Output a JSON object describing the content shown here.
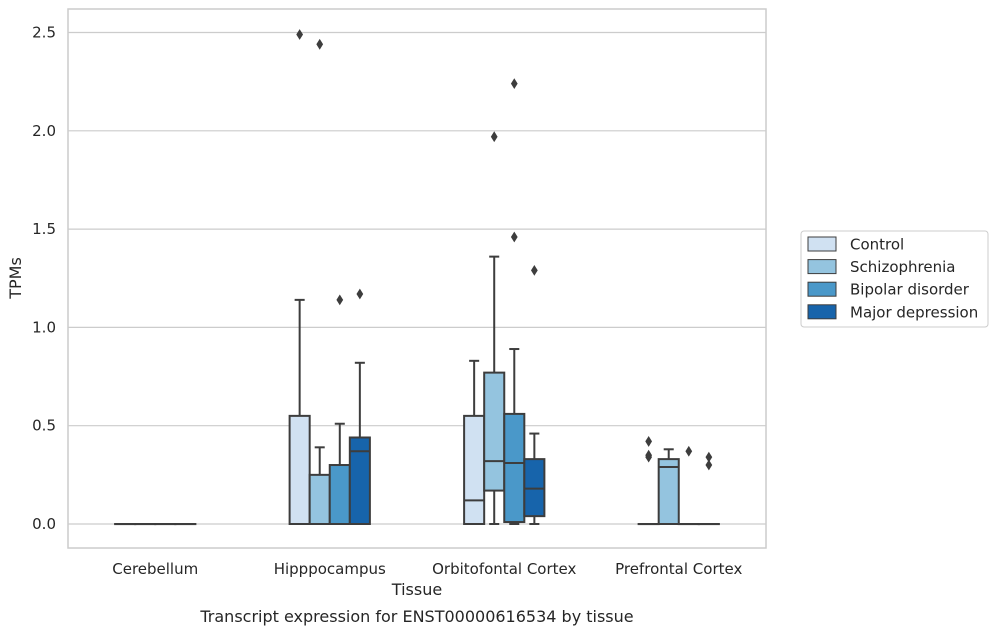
{
  "chart_data": {
    "type": "box",
    "xlabel": "Tissue",
    "ylabel": "TPMs",
    "caption": "Transcript expression for ENST00000616534 by tissue",
    "categories": [
      "Cerebellum",
      "Hipppocampus",
      "Orbitofontal Cortex",
      "Prefrontal Cortex"
    ],
    "yticks": [
      "0.0",
      "0.5",
      "1.0",
      "1.5",
      "2.0",
      "2.5"
    ],
    "ylim": [
      -0.12,
      2.62
    ],
    "grid": "horizontal",
    "legend_position": "right",
    "series": [
      {
        "name": "Control",
        "color": "#d0e1f2",
        "boxes": [
          {
            "q1": 0,
            "median": 0,
            "q3": 0,
            "whisker_low": 0,
            "whisker_high": 0,
            "outliers": []
          },
          {
            "q1": 0,
            "median": 0,
            "q3": 0.55,
            "whisker_low": 0,
            "whisker_high": 1.14,
            "outliers": [
              2.49
            ]
          },
          {
            "q1": 0,
            "median": 0.12,
            "q3": 0.55,
            "whisker_low": 0,
            "whisker_high": 0.83,
            "outliers": []
          },
          {
            "q1": 0,
            "median": 0,
            "q3": 0,
            "whisker_low": 0,
            "whisker_high": 0,
            "outliers": [
              0.42,
              0.35,
              0.34
            ]
          }
        ]
      },
      {
        "name": "Schizophrenia",
        "color": "#94c4df",
        "boxes": [
          {
            "q1": 0,
            "median": 0,
            "q3": 0,
            "whisker_low": 0,
            "whisker_high": 0,
            "outliers": []
          },
          {
            "q1": 0,
            "median": 0,
            "q3": 0.25,
            "whisker_low": 0,
            "whisker_high": 0.39,
            "outliers": [
              2.44
            ]
          },
          {
            "q1": 0.17,
            "median": 0.32,
            "q3": 0.77,
            "whisker_low": 0,
            "whisker_high": 1.36,
            "outliers": [
              1.97
            ]
          },
          {
            "q1": 0,
            "median": 0.29,
            "q3": 0.33,
            "whisker_low": 0,
            "whisker_high": 0.38,
            "outliers": []
          }
        ]
      },
      {
        "name": "Bipolar disorder",
        "color": "#4a98c9",
        "boxes": [
          {
            "q1": 0,
            "median": 0,
            "q3": 0,
            "whisker_low": 0,
            "whisker_high": 0,
            "outliers": []
          },
          {
            "q1": 0,
            "median": 0,
            "q3": 0.3,
            "whisker_low": 0,
            "whisker_high": 0.51,
            "outliers": [
              1.14
            ]
          },
          {
            "q1": 0.01,
            "median": 0.31,
            "q3": 0.56,
            "whisker_low": 0,
            "whisker_high": 0.89,
            "outliers": [
              2.24,
              1.46
            ]
          },
          {
            "q1": 0,
            "median": 0,
            "q3": 0,
            "whisker_low": 0,
            "whisker_high": 0,
            "outliers": [
              0.37
            ]
          }
        ]
      },
      {
        "name": "Major depression",
        "color": "#1764ab",
        "boxes": [
          {
            "q1": 0,
            "median": 0,
            "q3": 0,
            "whisker_low": 0,
            "whisker_high": 0,
            "outliers": []
          },
          {
            "q1": 0,
            "median": 0.37,
            "q3": 0.44,
            "whisker_low": 0,
            "whisker_high": 0.82,
            "outliers": [
              1.17
            ]
          },
          {
            "q1": 0.04,
            "median": 0.18,
            "q3": 0.33,
            "whisker_low": 0,
            "whisker_high": 0.46,
            "outliers": [
              1.29
            ]
          },
          {
            "q1": 0,
            "median": 0,
            "q3": 0,
            "whisker_low": 0,
            "whisker_high": 0,
            "outliers": [
              0.34,
              0.3
            ]
          }
        ]
      }
    ]
  }
}
